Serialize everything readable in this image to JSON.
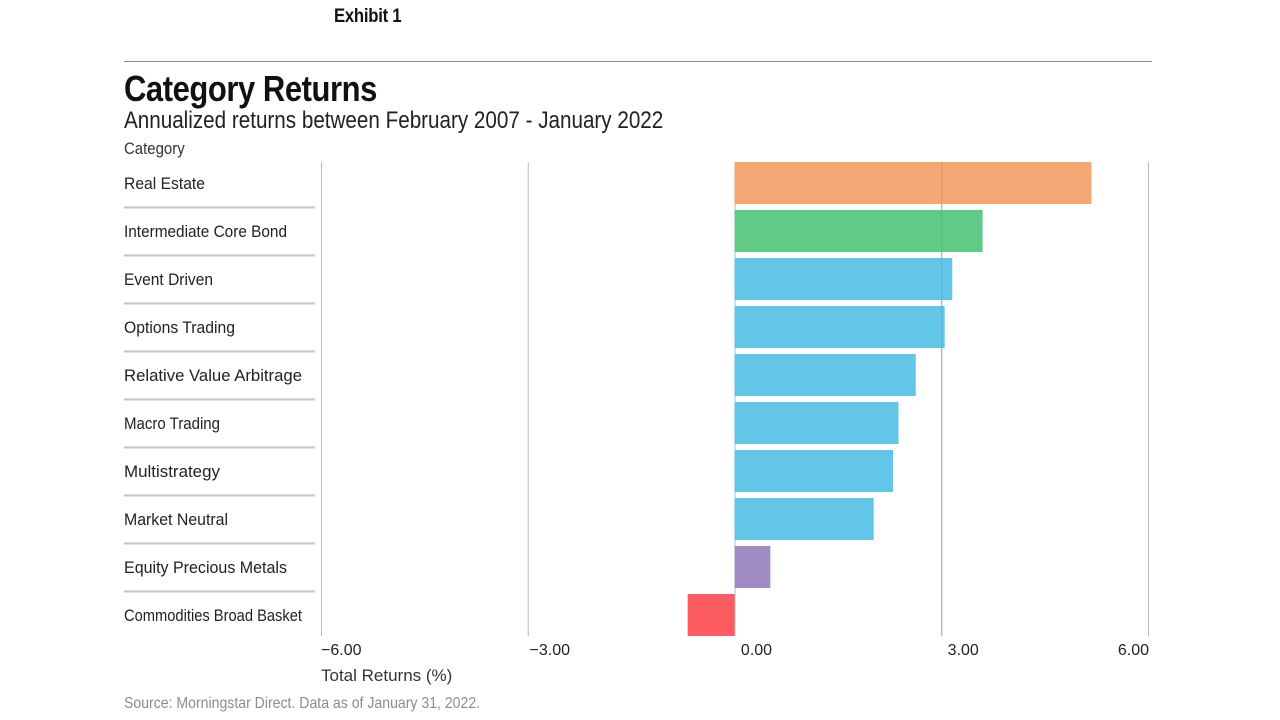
{
  "exhibit_label": "Exhibit 1",
  "source_note": "Source: Morningstar Direct. Data as of January 31, 2022.",
  "chart_data": {
    "type": "bar",
    "orientation": "horizontal",
    "title": "Category Returns",
    "subtitle": "Annualized returns between February 2007 - January 2022",
    "category_axis_label": "Category",
    "xlabel": "Total Returns (%)",
    "xlim": [
      -6,
      6
    ],
    "xticks": [
      -6,
      -3,
      0,
      3,
      6
    ],
    "xtick_labels": [
      "−6.00",
      "−3.00",
      "0.00",
      "3.00",
      "6.00"
    ],
    "grid": "vertical",
    "categories": [
      "Real Estate",
      "Intermediate Core Bond",
      "Event Driven",
      "Options Trading",
      "Relative Value Arbitrage",
      "Macro Trading",
      "Multistrategy",
      "Market Neutral",
      "Equity Precious Metals",
      "Commodities Broad Basket"
    ],
    "values": [
      5.18,
      3.6,
      3.16,
      3.05,
      2.63,
      2.38,
      2.3,
      2.02,
      0.52,
      -0.68
    ],
    "colors": [
      "#f3a774",
      "#5fcb87",
      "#62c6e8",
      "#62c6e8",
      "#62c6e8",
      "#62c6e8",
      "#62c6e8",
      "#62c6e8",
      "#a08cc2",
      "#fd5c63"
    ]
  }
}
